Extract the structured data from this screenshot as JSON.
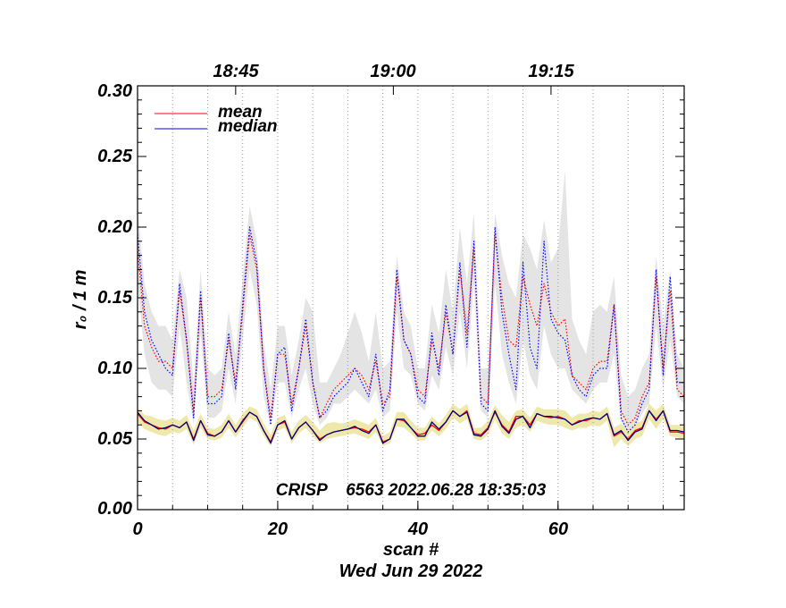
{
  "chart_data": {
    "type": "line",
    "title": "CRISP    6563 2022.06.28 18:35:03",
    "xlabel": "scan #",
    "ylabel": "r₀ / 1 m",
    "date_label": "Wed Jun 29 2022",
    "xlim": [
      0,
      78
    ],
    "ylim": [
      0,
      0.3
    ],
    "x_ticks": [
      0,
      20,
      40,
      60
    ],
    "x_tick_labels": [
      "0",
      "20",
      "40",
      "60"
    ],
    "y_ticks": [
      0.0,
      0.05,
      0.1,
      0.15,
      0.2,
      0.25,
      0.3
    ],
    "y_tick_labels": [
      "0.00",
      "0.05",
      "0.10",
      "0.15",
      "0.20",
      "0.25",
      "0.30"
    ],
    "top_axis_times": [
      {
        "scan": 14,
        "label": "18:45"
      },
      {
        "scan": 36.5,
        "label": "19:00"
      },
      {
        "scan": 59,
        "label": "19:15"
      }
    ],
    "scan_grid_lines": [
      5,
      10,
      15,
      20,
      25,
      30,
      35,
      40,
      45,
      50,
      55,
      60,
      65,
      70,
      75
    ],
    "legend": {
      "position": "top-left",
      "entries": [
        {
          "name": "mean",
          "color": "#ff0000"
        },
        {
          "name": "median",
          "color": "#0000ff"
        }
      ]
    },
    "colors": {
      "mean": "#ff0000",
      "median": "#0000ff",
      "low_median_line": "#000080",
      "upper_band": "#e4e4e4",
      "lower_band": "#eee8aa"
    },
    "series": [
      {
        "name": "upper mean",
        "style": "dotted",
        "color": "#ff0000",
        "x": [
          0,
          1,
          2,
          3,
          4,
          5,
          6,
          7,
          8,
          9,
          10,
          11,
          12,
          13,
          14,
          15,
          16,
          17,
          18,
          19,
          20,
          21,
          22,
          23,
          24,
          25,
          26,
          27,
          28,
          29,
          30,
          31,
          32,
          33,
          34,
          35,
          36,
          37,
          38,
          39,
          40,
          41,
          42,
          43,
          44,
          45,
          46,
          47,
          48,
          49,
          50,
          51,
          52,
          53,
          54,
          55,
          56,
          57,
          58,
          59,
          60,
          61,
          62,
          63,
          64,
          65,
          66,
          67,
          68,
          69,
          70,
          71,
          72,
          73,
          74,
          75,
          76,
          77,
          78
        ],
        "values": [
          0.185,
          0.13,
          0.115,
          0.105,
          0.105,
          0.1,
          0.155,
          0.12,
          0.07,
          0.15,
          0.08,
          0.08,
          0.085,
          0.12,
          0.09,
          0.14,
          0.195,
          0.17,
          0.1,
          0.065,
          0.11,
          0.11,
          0.075,
          0.1,
          0.13,
          0.09,
          0.065,
          0.075,
          0.085,
          0.09,
          0.095,
          0.1,
          0.095,
          0.085,
          0.105,
          0.075,
          0.08,
          0.165,
          0.12,
          0.11,
          0.085,
          0.08,
          0.12,
          0.1,
          0.14,
          0.11,
          0.17,
          0.125,
          0.185,
          0.08,
          0.075,
          0.195,
          0.15,
          0.12,
          0.115,
          0.165,
          0.145,
          0.13,
          0.16,
          0.14,
          0.13,
          0.135,
          0.095,
          0.09,
          0.085,
          0.1,
          0.105,
          0.105,
          0.145,
          0.07,
          0.06,
          0.065,
          0.08,
          0.09,
          0.165,
          0.1,
          0.155,
          0.085,
          0.08
        ]
      },
      {
        "name": "upper median",
        "style": "dotted",
        "color": "#0000ff",
        "x": [
          0,
          1,
          2,
          3,
          4,
          5,
          6,
          7,
          8,
          9,
          10,
          11,
          12,
          13,
          14,
          15,
          16,
          17,
          18,
          19,
          20,
          21,
          22,
          23,
          24,
          25,
          26,
          27,
          28,
          29,
          30,
          31,
          32,
          33,
          34,
          35,
          36,
          37,
          38,
          39,
          40,
          41,
          42,
          43,
          44,
          45,
          46,
          47,
          48,
          49,
          50,
          51,
          52,
          53,
          54,
          55,
          56,
          57,
          58,
          59,
          60,
          61,
          62,
          63,
          64,
          65,
          66,
          67,
          68,
          69,
          70,
          71,
          72,
          73,
          74,
          75,
          76,
          77,
          78
        ],
        "values": [
          0.195,
          0.14,
          0.12,
          0.11,
          0.1,
          0.095,
          0.16,
          0.12,
          0.065,
          0.155,
          0.075,
          0.075,
          0.08,
          0.125,
          0.085,
          0.145,
          0.2,
          0.175,
          0.1,
          0.06,
          0.11,
          0.115,
          0.07,
          0.1,
          0.135,
          0.09,
          0.065,
          0.07,
          0.08,
          0.085,
          0.09,
          0.1,
          0.09,
          0.08,
          0.11,
          0.07,
          0.085,
          0.17,
          0.12,
          0.11,
          0.08,
          0.075,
          0.125,
          0.095,
          0.145,
          0.11,
          0.175,
          0.115,
          0.19,
          0.075,
          0.07,
          0.2,
          0.14,
          0.11,
          0.085,
          0.175,
          0.115,
          0.1,
          0.19,
          0.135,
          0.125,
          0.12,
          0.095,
          0.085,
          0.08,
          0.095,
          0.1,
          0.1,
          0.145,
          0.065,
          0.055,
          0.06,
          0.075,
          0.085,
          0.17,
          0.095,
          0.165,
          0.09,
          0.09
        ]
      },
      {
        "name": "lower mean",
        "style": "solid",
        "color": "#ff0000",
        "x": [
          0,
          1,
          2,
          3,
          4,
          5,
          6,
          7,
          8,
          9,
          10,
          11,
          12,
          13,
          14,
          15,
          16,
          17,
          18,
          19,
          20,
          21,
          22,
          23,
          24,
          25,
          26,
          27,
          28,
          29,
          30,
          31,
          32,
          33,
          34,
          35,
          36,
          37,
          38,
          39,
          40,
          41,
          42,
          43,
          44,
          45,
          46,
          47,
          48,
          49,
          50,
          51,
          52,
          53,
          54,
          55,
          56,
          57,
          58,
          59,
          60,
          61,
          62,
          63,
          64,
          65,
          66,
          67,
          68,
          69,
          70,
          71,
          72,
          73,
          74,
          75,
          76,
          77,
          78
        ],
        "values": [
          0.068,
          0.062,
          0.06,
          0.058,
          0.057,
          0.06,
          0.058,
          0.062,
          0.05,
          0.063,
          0.054,
          0.052,
          0.055,
          0.063,
          0.055,
          0.062,
          0.069,
          0.066,
          0.056,
          0.048,
          0.06,
          0.062,
          0.05,
          0.058,
          0.062,
          0.056,
          0.05,
          0.053,
          0.055,
          0.056,
          0.057,
          0.058,
          0.057,
          0.055,
          0.06,
          0.048,
          0.05,
          0.064,
          0.063,
          0.058,
          0.053,
          0.054,
          0.06,
          0.056,
          0.062,
          0.07,
          0.066,
          0.07,
          0.054,
          0.053,
          0.058,
          0.069,
          0.06,
          0.055,
          0.066,
          0.066,
          0.06,
          0.068,
          0.066,
          0.065,
          0.066,
          0.064,
          0.06,
          0.063,
          0.063,
          0.065,
          0.064,
          0.068,
          0.052,
          0.055,
          0.05,
          0.056,
          0.058,
          0.07,
          0.064,
          0.07,
          0.055,
          0.055,
          0.054
        ]
      },
      {
        "name": "lower median",
        "style": "solid",
        "color": "#000080",
        "x": [
          0,
          1,
          2,
          3,
          4,
          5,
          6,
          7,
          8,
          9,
          10,
          11,
          12,
          13,
          14,
          15,
          16,
          17,
          18,
          19,
          20,
          21,
          22,
          23,
          24,
          25,
          26,
          27,
          28,
          29,
          30,
          31,
          32,
          33,
          34,
          35,
          36,
          37,
          38,
          39,
          40,
          41,
          42,
          43,
          44,
          45,
          46,
          47,
          48,
          49,
          50,
          51,
          52,
          53,
          54,
          55,
          56,
          57,
          58,
          59,
          60,
          61,
          62,
          63,
          64,
          65,
          66,
          67,
          68,
          69,
          70,
          71,
          72,
          73,
          74,
          75,
          76,
          77,
          78
        ],
        "values": [
          0.069,
          0.063,
          0.06,
          0.057,
          0.058,
          0.06,
          0.058,
          0.062,
          0.049,
          0.063,
          0.053,
          0.052,
          0.055,
          0.063,
          0.055,
          0.063,
          0.069,
          0.066,
          0.056,
          0.047,
          0.06,
          0.063,
          0.05,
          0.058,
          0.062,
          0.056,
          0.049,
          0.053,
          0.055,
          0.056,
          0.057,
          0.059,
          0.056,
          0.054,
          0.06,
          0.047,
          0.05,
          0.064,
          0.064,
          0.058,
          0.052,
          0.052,
          0.062,
          0.057,
          0.062,
          0.07,
          0.066,
          0.069,
          0.053,
          0.052,
          0.057,
          0.07,
          0.059,
          0.054,
          0.064,
          0.066,
          0.058,
          0.068,
          0.066,
          0.066,
          0.065,
          0.064,
          0.06,
          0.062,
          0.064,
          0.065,
          0.064,
          0.068,
          0.053,
          0.056,
          0.049,
          0.055,
          0.057,
          0.07,
          0.063,
          0.07,
          0.056,
          0.056,
          0.055
        ]
      }
    ],
    "bands": [
      {
        "name": "upper spread",
        "color": "#e4e4e4",
        "low": [
          0.16,
          0.11,
          0.09,
          0.085,
          0.085,
          0.08,
          0.13,
          0.09,
          0.06,
          0.125,
          0.065,
          0.065,
          0.07,
          0.1,
          0.075,
          0.12,
          0.17,
          0.145,
          0.08,
          0.06,
          0.09,
          0.09,
          0.065,
          0.085,
          0.1,
          0.075,
          0.06,
          0.065,
          0.075,
          0.075,
          0.08,
          0.085,
          0.08,
          0.075,
          0.085,
          0.065,
          0.07,
          0.14,
          0.1,
          0.095,
          0.075,
          0.07,
          0.095,
          0.085,
          0.115,
          0.095,
          0.14,
          0.1,
          0.16,
          0.07,
          0.065,
          0.16,
          0.11,
          0.09,
          0.075,
          0.12,
          0.095,
          0.085,
          0.13,
          0.11,
          0.1,
          0.1,
          0.085,
          0.08,
          0.075,
          0.085,
          0.09,
          0.09,
          0.11,
          0.062,
          0.055,
          0.058,
          0.068,
          0.075,
          0.13,
          0.085,
          0.12,
          0.08,
          0.075
        ],
        "high": [
          0.215,
          0.16,
          0.14,
          0.13,
          0.13,
          0.12,
          0.17,
          0.15,
          0.09,
          0.17,
          0.1,
          0.095,
          0.1,
          0.14,
          0.11,
          0.165,
          0.215,
          0.19,
          0.12,
          0.085,
          0.13,
          0.13,
          0.095,
          0.12,
          0.15,
          0.14,
          0.09,
          0.09,
          0.1,
          0.11,
          0.125,
          0.14,
          0.125,
          0.105,
          0.14,
          0.1,
          0.105,
          0.18,
          0.14,
          0.13,
          0.1,
          0.1,
          0.145,
          0.125,
          0.17,
          0.14,
          0.2,
          0.16,
          0.21,
          0.1,
          0.1,
          0.21,
          0.18,
          0.16,
          0.15,
          0.195,
          0.185,
          0.17,
          0.205,
          0.175,
          0.185,
          0.24,
          0.135,
          0.12,
          0.11,
          0.14,
          0.145,
          0.14,
          0.165,
          0.095,
          0.08,
          0.085,
          0.1,
          0.11,
          0.18,
          0.13,
          0.17,
          0.11,
          0.1
        ]
      },
      {
        "name": "lower spread",
        "color": "#eee8aa",
        "low": [
          0.062,
          0.057,
          0.055,
          0.053,
          0.052,
          0.055,
          0.054,
          0.057,
          0.046,
          0.058,
          0.05,
          0.049,
          0.051,
          0.058,
          0.051,
          0.058,
          0.065,
          0.062,
          0.052,
          0.045,
          0.056,
          0.058,
          0.047,
          0.054,
          0.058,
          0.052,
          0.047,
          0.05,
          0.051,
          0.052,
          0.053,
          0.054,
          0.052,
          0.05,
          0.055,
          0.045,
          0.047,
          0.059,
          0.058,
          0.054,
          0.049,
          0.049,
          0.056,
          0.052,
          0.057,
          0.065,
          0.061,
          0.064,
          0.05,
          0.049,
          0.053,
          0.064,
          0.054,
          0.05,
          0.058,
          0.06,
          0.055,
          0.063,
          0.061,
          0.06,
          0.06,
          0.058,
          0.056,
          0.058,
          0.058,
          0.06,
          0.059,
          0.063,
          0.044,
          0.05,
          0.045,
          0.05,
          0.052,
          0.064,
          0.057,
          0.064,
          0.052,
          0.051,
          0.05
        ],
        "high": [
          0.072,
          0.067,
          0.066,
          0.064,
          0.063,
          0.065,
          0.063,
          0.067,
          0.056,
          0.068,
          0.058,
          0.057,
          0.06,
          0.068,
          0.06,
          0.068,
          0.073,
          0.071,
          0.061,
          0.053,
          0.065,
          0.067,
          0.055,
          0.063,
          0.067,
          0.062,
          0.056,
          0.061,
          0.062,
          0.061,
          0.062,
          0.064,
          0.062,
          0.06,
          0.065,
          0.052,
          0.055,
          0.069,
          0.069,
          0.063,
          0.058,
          0.058,
          0.066,
          0.061,
          0.067,
          0.075,
          0.071,
          0.075,
          0.058,
          0.058,
          0.063,
          0.074,
          0.067,
          0.062,
          0.07,
          0.071,
          0.065,
          0.073,
          0.071,
          0.071,
          0.071,
          0.07,
          0.065,
          0.068,
          0.068,
          0.07,
          0.069,
          0.073,
          0.058,
          0.061,
          0.056,
          0.061,
          0.063,
          0.075,
          0.07,
          0.075,
          0.06,
          0.06,
          0.059
        ]
      }
    ]
  }
}
